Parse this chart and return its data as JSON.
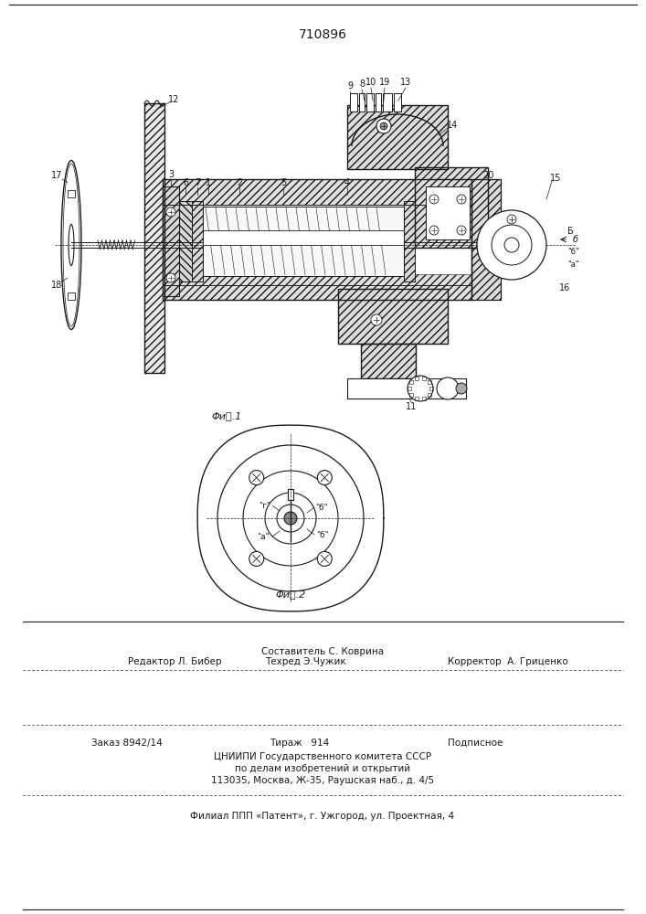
{
  "patent_number": "710896",
  "fig1_caption": "ΦиⲚ.1",
  "fig2_caption": "ΦиⲚ.2",
  "bg_color": "#ffffff",
  "line_color": "#1a1a1a",
  "footer_lines": [
    "Составитель С. Коврина",
    "Редактор Л. Бибер",
    "Техред Э.Чужик",
    "Корректор  А. Гриценко",
    "Заказ 8942/14",
    "Тираж   914",
    "Подписное",
    "ЦНИИПИ Государственного комитета СССР",
    "по делам изобретений и открытий",
    "113035, Москва, Ж-35, Раушская наб., д. 4/5",
    "Филиал ППП «Патент», г. Ужгород, ул. Проектная, 4"
  ]
}
